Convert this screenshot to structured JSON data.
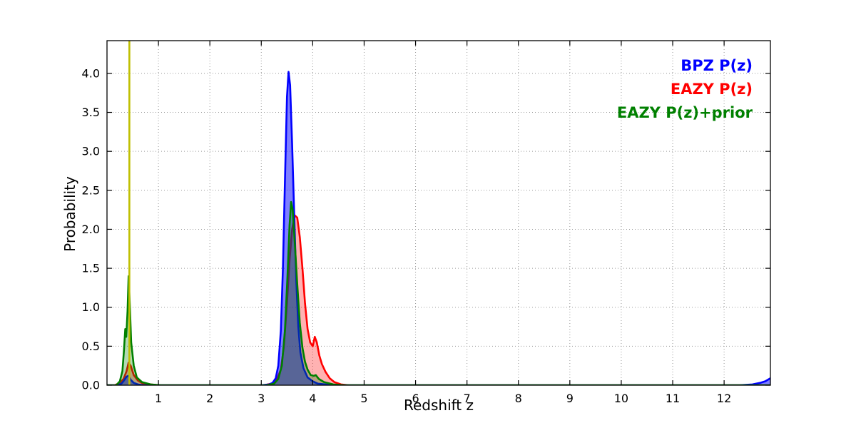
{
  "chart_data": {
    "type": "line",
    "title": "",
    "xlabel": "Redshift z",
    "ylabel": "Probability",
    "xlim": [
      0,
      12.9
    ],
    "ylim": [
      0,
      4.42
    ],
    "xticks": [
      1,
      2,
      3,
      4,
      5,
      6,
      7,
      8,
      9,
      10,
      11,
      12
    ],
    "yticks": [
      0.0,
      0.5,
      1.0,
      1.5,
      2.0,
      2.5,
      3.0,
      3.5,
      4.0
    ],
    "grid": true,
    "legend_position": "top-right",
    "vline": {
      "id": "spec-z-line",
      "x": 0.435,
      "color": "#bfbf00"
    },
    "series": [
      {
        "id": "bpz",
        "name": "BPZ P(z)",
        "color": "#0000ff",
        "fill_opacity": 0.5,
        "points": [
          [
            0.0,
            0
          ],
          [
            0.2,
            0
          ],
          [
            0.28,
            0.02
          ],
          [
            0.33,
            0.06
          ],
          [
            0.38,
            0.11
          ],
          [
            0.42,
            0.12
          ],
          [
            0.46,
            0.07
          ],
          [
            0.52,
            0.03
          ],
          [
            0.6,
            0.01
          ],
          [
            0.7,
            0
          ],
          [
            3.0,
            0
          ],
          [
            3.15,
            0.01
          ],
          [
            3.22,
            0.03
          ],
          [
            3.28,
            0.09
          ],
          [
            3.33,
            0.25
          ],
          [
            3.38,
            0.7
          ],
          [
            3.42,
            1.5
          ],
          [
            3.46,
            2.6
          ],
          [
            3.5,
            3.7
          ],
          [
            3.53,
            4.02
          ],
          [
            3.56,
            3.85
          ],
          [
            3.6,
            3.1
          ],
          [
            3.64,
            2.2
          ],
          [
            3.68,
            1.35
          ],
          [
            3.72,
            0.75
          ],
          [
            3.76,
            0.42
          ],
          [
            3.82,
            0.22
          ],
          [
            3.9,
            0.1
          ],
          [
            4.0,
            0.05
          ],
          [
            4.1,
            0.02
          ],
          [
            4.25,
            0.01
          ],
          [
            4.5,
            0
          ],
          [
            12.3,
            0
          ],
          [
            12.55,
            0.01
          ],
          [
            12.7,
            0.03
          ],
          [
            12.8,
            0.05
          ],
          [
            12.9,
            0.09
          ]
        ]
      },
      {
        "id": "eazy",
        "name": "EAZY P(z)",
        "color": "#ff0000",
        "fill_opacity": 0.3,
        "points": [
          [
            0.0,
            0
          ],
          [
            0.15,
            0
          ],
          [
            0.25,
            0.03
          ],
          [
            0.32,
            0.08
          ],
          [
            0.38,
            0.18
          ],
          [
            0.42,
            0.29
          ],
          [
            0.46,
            0.25
          ],
          [
            0.52,
            0.13
          ],
          [
            0.6,
            0.06
          ],
          [
            0.7,
            0.02
          ],
          [
            0.85,
            0.01
          ],
          [
            1.0,
            0
          ],
          [
            3.05,
            0
          ],
          [
            3.2,
            0.02
          ],
          [
            3.3,
            0.07
          ],
          [
            3.38,
            0.2
          ],
          [
            3.44,
            0.5
          ],
          [
            3.5,
            1.05
          ],
          [
            3.55,
            1.6
          ],
          [
            3.6,
            2.0
          ],
          [
            3.65,
            2.18
          ],
          [
            3.7,
            2.15
          ],
          [
            3.75,
            1.9
          ],
          [
            3.8,
            1.5
          ],
          [
            3.85,
            1.05
          ],
          [
            3.9,
            0.72
          ],
          [
            3.95,
            0.55
          ],
          [
            4.0,
            0.5
          ],
          [
            4.04,
            0.62
          ],
          [
            4.08,
            0.55
          ],
          [
            4.13,
            0.38
          ],
          [
            4.18,
            0.27
          ],
          [
            4.25,
            0.17
          ],
          [
            4.33,
            0.09
          ],
          [
            4.42,
            0.04
          ],
          [
            4.55,
            0.01
          ],
          [
            4.7,
            0
          ],
          [
            12.9,
            0
          ]
        ]
      },
      {
        "id": "eazy-prior",
        "name": "EAZY P(z)+prior",
        "color": "#008000",
        "fill_opacity": 0.3,
        "points": [
          [
            0.0,
            0
          ],
          [
            0.18,
            0
          ],
          [
            0.25,
            0.05
          ],
          [
            0.3,
            0.18
          ],
          [
            0.33,
            0.45
          ],
          [
            0.355,
            0.72
          ],
          [
            0.375,
            0.62
          ],
          [
            0.4,
            0.95
          ],
          [
            0.42,
            1.4
          ],
          [
            0.445,
            1.0
          ],
          [
            0.47,
            0.55
          ],
          [
            0.52,
            0.25
          ],
          [
            0.58,
            0.1
          ],
          [
            0.68,
            0.04
          ],
          [
            0.85,
            0.01
          ],
          [
            1.05,
            0
          ],
          [
            3.1,
            0
          ],
          [
            3.25,
            0.02
          ],
          [
            3.33,
            0.08
          ],
          [
            3.4,
            0.25
          ],
          [
            3.46,
            0.7
          ],
          [
            3.51,
            1.4
          ],
          [
            3.55,
            2.05
          ],
          [
            3.58,
            2.35
          ],
          [
            3.61,
            2.25
          ],
          [
            3.65,
            1.85
          ],
          [
            3.7,
            1.3
          ],
          [
            3.75,
            0.8
          ],
          [
            3.8,
            0.48
          ],
          [
            3.85,
            0.3
          ],
          [
            3.9,
            0.2
          ],
          [
            3.96,
            0.13
          ],
          [
            4.02,
            0.12
          ],
          [
            4.06,
            0.13
          ],
          [
            4.12,
            0.08
          ],
          [
            4.22,
            0.04
          ],
          [
            4.4,
            0.01
          ],
          [
            4.6,
            0
          ],
          [
            12.9,
            0
          ]
        ]
      }
    ]
  }
}
